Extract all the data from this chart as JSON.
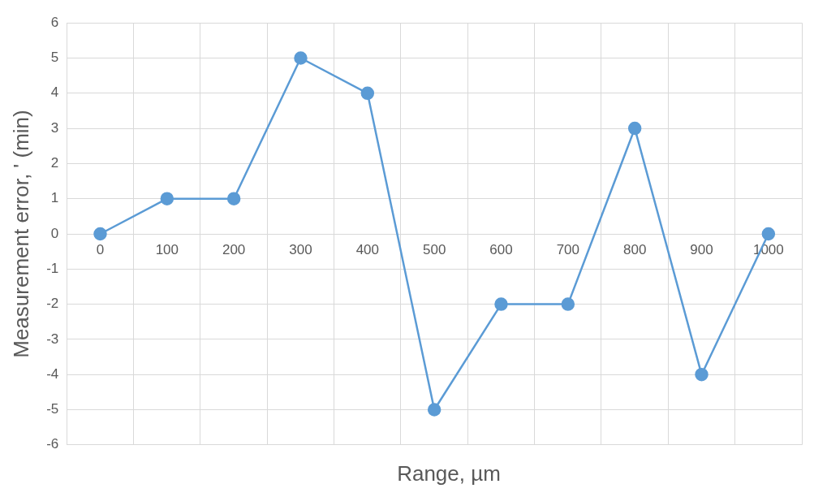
{
  "chart_data": {
    "type": "line",
    "xlabel": "Range, µm",
    "ylabel": "Measurement error, ' (min)",
    "categories": [
      "0",
      "100",
      "200",
      "300",
      "400",
      "500",
      "600",
      "700",
      "800",
      "900",
      "1000"
    ],
    "series": [
      {
        "color": "#5b9bd5",
        "values": [
          0,
          1,
          1,
          5,
          4,
          -5,
          -2,
          -2,
          3,
          -4,
          0
        ]
      }
    ],
    "ylim": [
      -6,
      6
    ],
    "yticks": [
      -6,
      -5,
      -4,
      -3,
      -2,
      -1,
      0,
      1,
      2,
      3,
      4,
      5,
      6
    ],
    "grid": true,
    "marker": "circle",
    "line_style": "solid"
  }
}
